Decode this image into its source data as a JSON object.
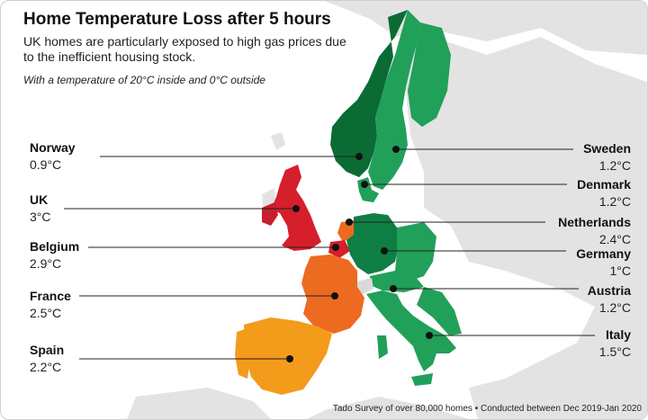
{
  "header": {
    "title": "Home Temperature Loss after 5 hours",
    "subtitle": "UK homes are particularly exposed to high gas prices due to the inefficient housing stock.",
    "note": "With a temperature of 20°C inside and 0°C outside"
  },
  "source": "Tado Survey of over 80,000 homes • Conducted between Dec 2019-Jan 2020",
  "colors": {
    "land": "#e3e3e3",
    "low_loss_green": "#21a05a",
    "mid_green": "#0f7e45",
    "dark_green": "#0b6b34",
    "orange_light": "#f39b1b",
    "orange": "#ec6b20",
    "red": "#d51f2b",
    "red_dark": "#c7202c"
  },
  "countries": {
    "norway": {
      "name": "Norway",
      "value": "0.9°C"
    },
    "uk": {
      "name": "UK",
      "value": "3°C"
    },
    "belgium": {
      "name": "Belgium",
      "value": "2.9°C"
    },
    "france": {
      "name": "France",
      "value": "2.5°C"
    },
    "spain": {
      "name": "Spain",
      "value": "2.2°C"
    },
    "sweden": {
      "name": "Sweden",
      "value": "1.2°C"
    },
    "denmark": {
      "name": "Denmark",
      "value": "1.2°C"
    },
    "netherlands": {
      "name": "Netherlands",
      "value": "2.4°C"
    },
    "germany": {
      "name": "Germany",
      "value": "1°C"
    },
    "austria": {
      "name": "Austria",
      "value": "1.2°C"
    },
    "italy": {
      "name": "Italy",
      "value": "1.5°C"
    }
  }
}
